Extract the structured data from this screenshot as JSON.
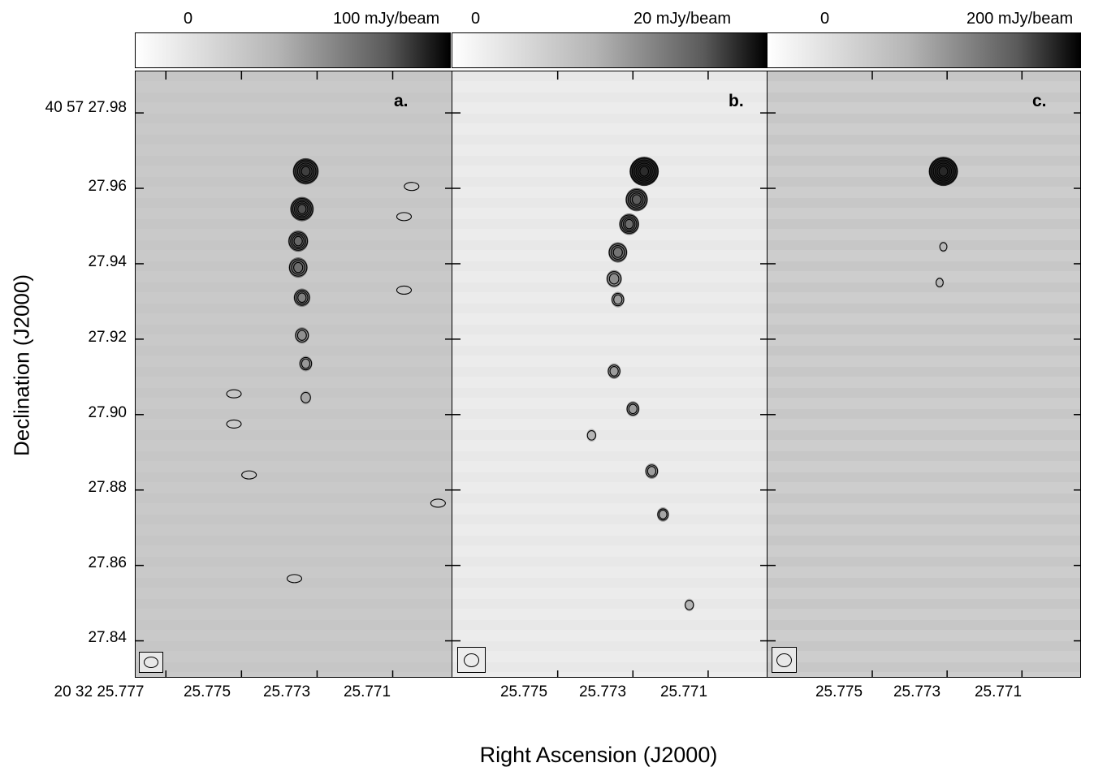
{
  "chart_data": {
    "type": "heatmap",
    "xlabel": "Right Ascension (J2000)",
    "ylabel": "Declination (J2000)",
    "x_unit": "seconds of RA (20 32 ...)",
    "y_unit": "arcsec of Dec (40 57 ...)",
    "xlim": [
      25.7778,
      25.7694
    ],
    "ylim": [
      27.83,
      27.991
    ],
    "panels": [
      {
        "label": "a.",
        "colorbar": {
          "low": "0",
          "high": "100 mJy/beam"
        },
        "x_ticks": [
          "20 32 25.777",
          "25.775",
          "25.773",
          "25.771"
        ],
        "x_tick_values": [
          25.777,
          25.775,
          25.773,
          25.771
        ],
        "y_ticks": [
          "40 57 27.98",
          "27.96",
          "27.94",
          "27.92",
          "27.90",
          "27.88",
          "27.86",
          "27.84"
        ],
        "y_tick_values": [
          27.98,
          27.96,
          27.94,
          27.92,
          27.9,
          27.88,
          27.86,
          27.84
        ],
        "jet_knots": [
          {
            "ra": 25.7733,
            "dec": 27.9645,
            "strength": 0.85
          },
          {
            "ra": 25.7734,
            "dec": 27.9545,
            "strength": 0.75
          },
          {
            "ra": 25.7735,
            "dec": 27.946,
            "strength": 0.6
          },
          {
            "ra": 25.7735,
            "dec": 27.939,
            "strength": 0.55
          },
          {
            "ra": 25.7734,
            "dec": 27.931,
            "strength": 0.45
          },
          {
            "ra": 25.7734,
            "dec": 27.921,
            "strength": 0.35
          },
          {
            "ra": 25.7733,
            "dec": 27.9135,
            "strength": 0.3
          },
          {
            "ra": 25.7733,
            "dec": 27.9045,
            "strength": 0.2
          }
        ],
        "extra_contours": [
          {
            "ra": 25.7707,
            "dec": 27.9525
          },
          {
            "ra": 25.7707,
            "dec": 27.933
          },
          {
            "ra": 25.7752,
            "dec": 27.9055
          },
          {
            "ra": 25.7752,
            "dec": 27.8975
          },
          {
            "ra": 25.7748,
            "dec": 27.884
          },
          {
            "ra": 25.7736,
            "dec": 27.8565
          },
          {
            "ra": 25.7705,
            "dec": 27.9605
          },
          {
            "ra": 25.7698,
            "dec": 27.8765
          }
        ]
      },
      {
        "label": "b.",
        "colorbar": {
          "low": "0",
          "high": "20 mJy/beam"
        },
        "x_ticks": [
          "25.775",
          "25.773",
          "25.771"
        ],
        "x_tick_values": [
          25.775,
          25.773,
          25.771
        ],
        "jet_knots": [
          {
            "ra": 25.7727,
            "dec": 27.9645,
            "strength": 1.0
          },
          {
            "ra": 25.7729,
            "dec": 27.957,
            "strength": 0.7
          },
          {
            "ra": 25.7731,
            "dec": 27.9505,
            "strength": 0.6
          },
          {
            "ra": 25.7734,
            "dec": 27.943,
            "strength": 0.55
          },
          {
            "ra": 25.7735,
            "dec": 27.936,
            "strength": 0.4
          },
          {
            "ra": 25.7734,
            "dec": 27.9305,
            "strength": 0.3
          },
          {
            "ra": 25.7735,
            "dec": 27.9115,
            "strength": 0.3
          },
          {
            "ra": 25.773,
            "dec": 27.9015,
            "strength": 0.3
          },
          {
            "ra": 25.7725,
            "dec": 27.885,
            "strength": 0.3
          },
          {
            "ra": 25.7722,
            "dec": 27.8735,
            "strength": 0.25
          },
          {
            "ra": 25.7715,
            "dec": 27.8495,
            "strength": 0.15
          },
          {
            "ra": 25.7741,
            "dec": 27.8945,
            "strength": 0.15
          }
        ]
      },
      {
        "label": "c.",
        "colorbar": {
          "low": "0",
          "high": "200 mJy/beam"
        },
        "x_ticks": [
          "25.775",
          "25.773",
          "25.771"
        ],
        "x_tick_values": [
          25.775,
          25.773,
          25.771
        ],
        "jet_knots": [
          {
            "ra": 25.7731,
            "dec": 27.9645,
            "strength": 1.0
          },
          {
            "ra": 25.7731,
            "dec": 27.9445,
            "strength": 0.1
          },
          {
            "ra": 25.7732,
            "dec": 27.935,
            "strength": 0.1
          }
        ]
      }
    ]
  }
}
